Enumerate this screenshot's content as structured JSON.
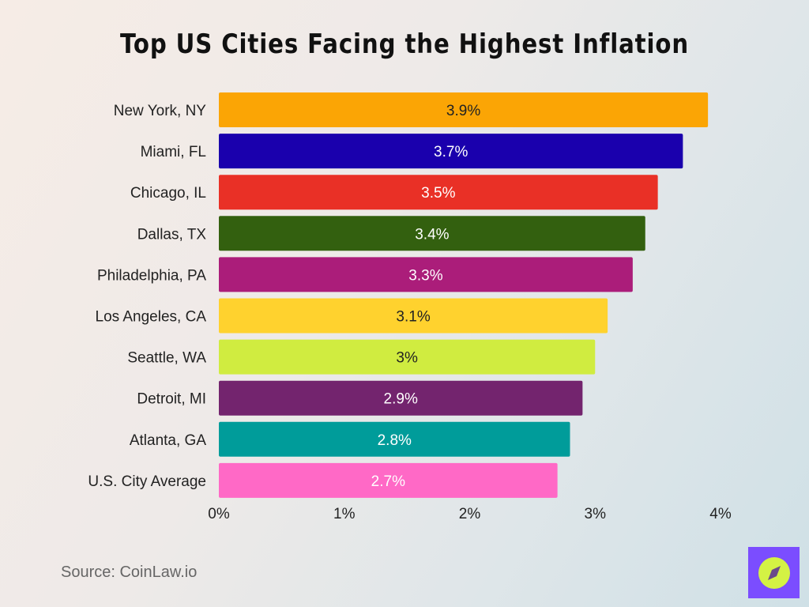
{
  "chart_data": {
    "type": "bar",
    "orientation": "horizontal",
    "title": "Top US Cities Facing the Highest Inflation",
    "categories": [
      "New York, NY",
      "Miami, FL",
      "Chicago, IL",
      "Dallas, TX",
      "Philadelphia, PA",
      "Los Angeles, CA",
      "Seattle, WA",
      "Detroit, MI",
      "Atlanta, GA",
      "U.S. City Average"
    ],
    "values": [
      3.9,
      3.7,
      3.5,
      3.4,
      3.3,
      3.1,
      3.0,
      2.9,
      2.8,
      2.7
    ],
    "data_labels": [
      "3.9%",
      "3.7%",
      "3.5%",
      "3.4%",
      "3.3%",
      "3.1%",
      "3%",
      "2.9%",
      "2.8%",
      "2.7%"
    ],
    "colors": [
      "#fba505",
      "#1a00ad",
      "#e93026",
      "#33600f",
      "#ab1d7a",
      "#ffd22e",
      "#d0ec40",
      "#73246e",
      "#009c9a",
      "#ff69c6"
    ],
    "label_colors": [
      "#222222",
      "#ffffff",
      "#ffffff",
      "#ffffff",
      "#ffffff",
      "#222222",
      "#222222",
      "#ffffff",
      "#ffffff",
      "#ffffff"
    ],
    "xlim": [
      0,
      4
    ],
    "x_ticks": [
      "0%",
      "1%",
      "2%",
      "3%",
      "4%"
    ],
    "grid": false,
    "xlabel": "",
    "ylabel": ""
  },
  "source": "Source: CoinLaw.io",
  "logo": {
    "icon": "compass-icon",
    "bg": "#7b4dff",
    "fg": "#d4f244"
  }
}
